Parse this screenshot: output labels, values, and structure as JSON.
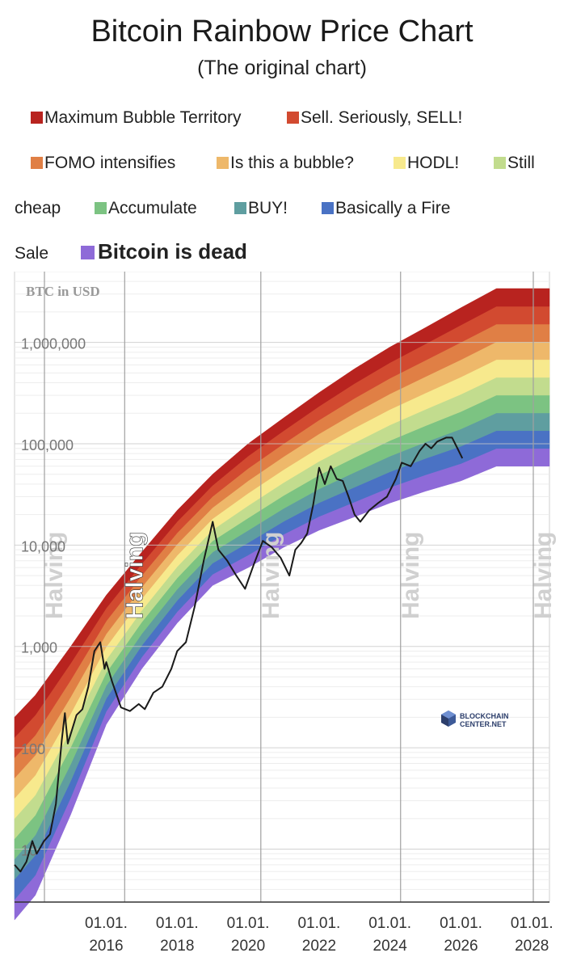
{
  "title": "Bitcoin Rainbow Price Chart",
  "subtitle": "(The original chart)",
  "legend": [
    {
      "label": "Maximum Bubble Territory",
      "color": "#b8231f"
    },
    {
      "label": "Sell. Seriously, SELL!",
      "color": "#d24a30"
    },
    {
      "label": "FOMO intensifies",
      "color": "#e07f45"
    },
    {
      "label": "Is this a bubble?",
      "color": "#eeb86a"
    },
    {
      "label": "HODL!",
      "color": "#f7e98d"
    },
    {
      "label": "Still cheap",
      "color": "#c2dc8e"
    },
    {
      "label": "Accumulate",
      "color": "#7cc382"
    },
    {
      "label": "BUY!",
      "color": "#5f9ea0"
    },
    {
      "label": "Basically a Fire Sale",
      "color": "#4a72c4"
    },
    {
      "label": "Bitcoin is dead",
      "color": "#8e6ad8"
    }
  ],
  "legend_text": {
    "still": "Still",
    "cheap": "cheap",
    "fire": "Basically a Fire",
    "sale": "Sale"
  },
  "chart_data": {
    "type": "line",
    "ylabel": "BTC in USD",
    "y_scale": "log",
    "ylim": [
      3,
      5000000
    ],
    "xlim": [
      "2013-06-01",
      "2028-06-30"
    ],
    "y_ticks": [
      "10",
      "100",
      "1,000",
      "10,000",
      "100,000",
      "1,000,000"
    ],
    "y_tick_values": [
      10,
      100,
      1000,
      10000,
      100000,
      1000000
    ],
    "x_ticks": [
      {
        "line1": "01.01.",
        "line2": "2016",
        "date": "2016-01-01"
      },
      {
        "line1": "01.01.",
        "line2": "2018",
        "date": "2018-01-01"
      },
      {
        "line1": "01.01.",
        "line2": "2020",
        "date": "2020-01-01"
      },
      {
        "line1": "01.01.",
        "line2": "2022",
        "date": "2022-01-01"
      },
      {
        "line1": "01.01.",
        "line2": "2024",
        "date": "2024-01-01"
      },
      {
        "line1": "01.01.",
        "line2": "2026",
        "date": "2026-01-01"
      },
      {
        "line1": "01.01.",
        "line2": "2028",
        "date": "2028-01-01"
      }
    ],
    "halvings": [
      {
        "label": "Halving",
        "date": "2012-11-28"
      },
      {
        "label": "Halving",
        "date": "2016-07-09"
      },
      {
        "label": "Halving",
        "date": "2020-05-11"
      },
      {
        "label": "Halving",
        "date": "2024-04-19"
      },
      {
        "label": "Halving",
        "date": "2028-04-15"
      }
    ],
    "bands": {
      "labels": [
        "Bitcoin is dead",
        "Basically a Fire Sale",
        "BUY!",
        "Accumulate",
        "Still cheap",
        "HODL!",
        "Is this a bubble?",
        "FOMO intensifies",
        "Sell. Seriously, SELL!",
        "Maximum Bubble Territory"
      ],
      "colors": [
        "#8e6ad8",
        "#4a72c4",
        "#5f9ea0",
        "#7cc382",
        "#c2dc8e",
        "#f7e98d",
        "#eeb86a",
        "#e07f45",
        "#d24a30",
        "#b8231f"
      ],
      "lower_boundary": [
        {
          "x": "2013-06-01",
          "y": 2
        },
        {
          "x": "2014-01-01",
          "y": 3.5
        },
        {
          "x": "2015-01-01",
          "y": 22
        },
        {
          "x": "2016-01-01",
          "y": 170
        },
        {
          "x": "2017-01-01",
          "y": 600
        },
        {
          "x": "2018-01-01",
          "y": 1700
        },
        {
          "x": "2019-01-01",
          "y": 4000
        },
        {
          "x": "2020-01-01",
          "y": 6000
        },
        {
          "x": "2021-01-01",
          "y": 9500
        },
        {
          "x": "2022-01-01",
          "y": 14000
        },
        {
          "x": "2023-01-01",
          "y": 19000
        },
        {
          "x": "2024-01-01",
          "y": 26000
        },
        {
          "x": "2025-01-01",
          "y": 34000
        },
        {
          "x": "2026-01-01",
          "y": 43000
        },
        {
          "x": "2027-01-01",
          "y": 60000
        },
        {
          "x": "2028-06-30",
          "y": 60000
        }
      ],
      "upper_boundary": [
        {
          "x": "2013-06-01",
          "y": 200
        },
        {
          "x": "2014-01-01",
          "y": 330
        },
        {
          "x": "2015-01-01",
          "y": 1000
        },
        {
          "x": "2016-01-01",
          "y": 3200
        },
        {
          "x": "2017-01-01",
          "y": 8500
        },
        {
          "x": "2018-01-01",
          "y": 22000
        },
        {
          "x": "2019-01-01",
          "y": 50000
        },
        {
          "x": "2020-01-01",
          "y": 100000
        },
        {
          "x": "2021-01-01",
          "y": 180000
        },
        {
          "x": "2022-01-01",
          "y": 320000
        },
        {
          "x": "2023-01-01",
          "y": 550000
        },
        {
          "x": "2024-01-01",
          "y": 900000
        },
        {
          "x": "2025-01-01",
          "y": 1400000
        },
        {
          "x": "2026-01-01",
          "y": 2200000
        },
        {
          "x": "2027-01-01",
          "y": 3400000
        },
        {
          "x": "2028-06-30",
          "y": 3400000
        }
      ]
    },
    "series": [
      {
        "values": [
          {
            "x": "2013-06-01",
            "y": 7
          },
          {
            "x": "2013-08-01",
            "y": 6
          },
          {
            "x": "2013-10-01",
            "y": 7.5
          },
          {
            "x": "2013-12-01",
            "y": 12
          },
          {
            "x": "2014-01-15",
            "y": 9
          },
          {
            "x": "2014-04-01",
            "y": 12
          },
          {
            "x": "2014-06-01",
            "y": 14
          },
          {
            "x": "2014-08-01",
            "y": 28
          },
          {
            "x": "2014-10-01",
            "y": 120
          },
          {
            "x": "2014-11-01",
            "y": 220
          },
          {
            "x": "2014-12-01",
            "y": 110
          },
          {
            "x": "2015-03-01",
            "y": 210
          },
          {
            "x": "2015-05-01",
            "y": 240
          },
          {
            "x": "2015-07-01",
            "y": 400
          },
          {
            "x": "2015-09-01",
            "y": 900
          },
          {
            "x": "2015-11-01",
            "y": 1100
          },
          {
            "x": "2015-12-15",
            "y": 600
          },
          {
            "x": "2016-01-01",
            "y": 700
          },
          {
            "x": "2016-03-01",
            "y": 450
          },
          {
            "x": "2016-06-01",
            "y": 250
          },
          {
            "x": "2016-09-01",
            "y": 230
          },
          {
            "x": "2016-12-01",
            "y": 270
          },
          {
            "x": "2017-02-01",
            "y": 240
          },
          {
            "x": "2017-05-01",
            "y": 350
          },
          {
            "x": "2017-08-01",
            "y": 400
          },
          {
            "x": "2017-11-01",
            "y": 600
          },
          {
            "x": "2018-01-01",
            "y": 900
          },
          {
            "x": "2018-04-01",
            "y": 1100
          },
          {
            "x": "2018-07-01",
            "y": 2500
          },
          {
            "x": "2018-10-01",
            "y": 7000
          },
          {
            "x": "2019-01-01",
            "y": 17000
          },
          {
            "x": "2019-03-01",
            "y": 9000
          },
          {
            "x": "2019-06-01",
            "y": 7000
          },
          {
            "x": "2019-09-01",
            "y": 5000
          },
          {
            "x": "2019-12-01",
            "y": 3700
          },
          {
            "x": "2020-03-01",
            "y": 6500
          },
          {
            "x": "2020-06-01",
            "y": 11000
          },
          {
            "x": "2020-09-01",
            "y": 9500
          },
          {
            "x": "2020-12-01",
            "y": 7500
          },
          {
            "x": "2021-03-01",
            "y": 5000
          },
          {
            "x": "2021-05-01",
            "y": 9000
          },
          {
            "x": "2021-07-01",
            "y": 10500
          },
          {
            "x": "2021-09-01",
            "y": 13000
          },
          {
            "x": "2021-11-01",
            "y": 25000
          },
          {
            "x": "2022-01-01",
            "y": 58000
          },
          {
            "x": "2022-03-01",
            "y": 40000
          },
          {
            "x": "2022-05-01",
            "y": 60000
          },
          {
            "x": "2022-07-01",
            "y": 45000
          },
          {
            "x": "2022-09-01",
            "y": 43000
          },
          {
            "x": "2022-11-01",
            "y": 30000
          },
          {
            "x": "2023-01-01",
            "y": 20000
          },
          {
            "x": "2023-03-01",
            "y": 17000
          },
          {
            "x": "2023-06-01",
            "y": 22000
          },
          {
            "x": "2023-09-01",
            "y": 26000
          },
          {
            "x": "2023-12-01",
            "y": 30000
          },
          {
            "x": "2024-03-01",
            "y": 45000
          },
          {
            "x": "2024-05-01",
            "y": 65000
          },
          {
            "x": "2024-08-01",
            "y": 60000
          },
          {
            "x": "2024-11-01",
            "y": 85000
          },
          {
            "x": "2025-01-01",
            "y": 100000
          },
          {
            "x": "2025-03-01",
            "y": 90000
          },
          {
            "x": "2025-05-01",
            "y": 105000
          },
          {
            "x": "2025-08-01",
            "y": 115000
          },
          {
            "x": "2025-10-01",
            "y": 115000
          },
          {
            "x": "2025-12-01",
            "y": 88000
          },
          {
            "x": "2026-01-15",
            "y": 72000
          }
        ]
      }
    ]
  },
  "logo": {
    "line1": "BLOCKCHAIN",
    "line2": "CENTER.NET"
  }
}
